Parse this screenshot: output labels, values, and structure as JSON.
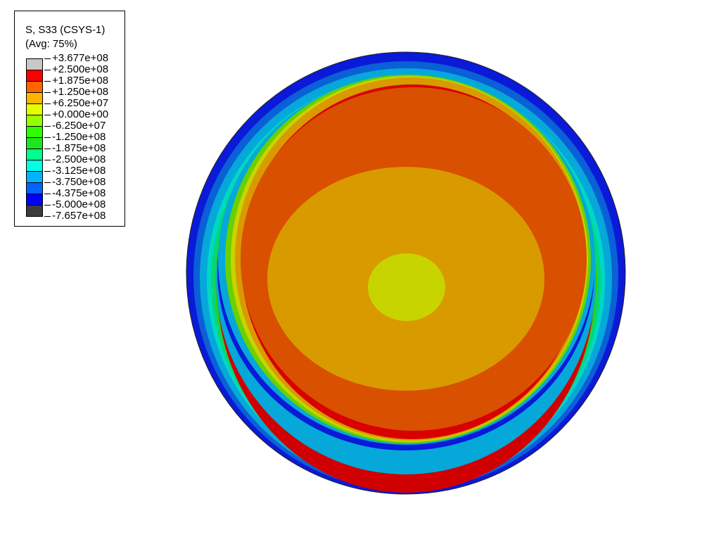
{
  "legend": {
    "title_line1": "S, S33 (CSYS-1)",
    "title_line2": "(Avg: 75%)",
    "levels": [
      "+3.677e+08",
      "+2.500e+08",
      "+1.875e+08",
      "+1.250e+08",
      "+6.250e+07",
      "+0.000e+00",
      "-6.250e+07",
      "-1.250e+08",
      "-1.875e+08",
      "-2.500e+08",
      "-3.125e+08",
      "-3.750e+08",
      "-4.375e+08",
      "-5.000e+08",
      "-7.657e+08"
    ],
    "colors": [
      "#c8c8c8",
      "#ff0000",
      "#ff6400",
      "#ffb400",
      "#e6ff00",
      "#96ff00",
      "#2eff00",
      "#1ee61e",
      "#00ff8c",
      "#00ffe6",
      "#00b4ff",
      "#0064ff",
      "#0000ff",
      "#3c3c3c"
    ]
  },
  "chart_data": {
    "type": "heatmap",
    "title": "S, S33 (CSYS-1)",
    "subtitle": "(Avg: 75%)",
    "variable": "S33",
    "averaging": "75%",
    "range": [
      -765700000.0,
      367700000.0
    ],
    "contour_levels": [
      367700000.0,
      250000000.0,
      187500000.0,
      125000000.0,
      62500000.0,
      0,
      -62500000.0,
      -125000000.0,
      -187500000.0,
      -250000000.0,
      -312500000.0,
      -375000000.0,
      -437500000.0,
      -500000000.0,
      -765700000.0
    ],
    "legend_placement": "top-left"
  }
}
